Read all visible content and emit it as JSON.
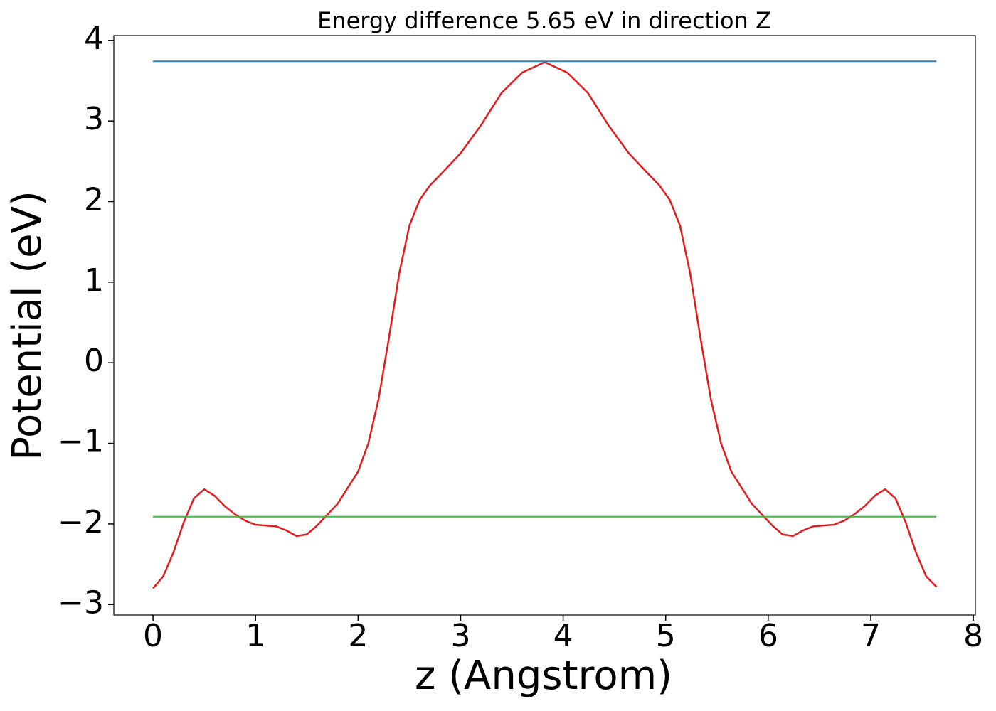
{
  "chart_data": {
    "type": "line",
    "title": "Energy difference 5.65 eV in direction Z",
    "x_label": "z (Angstrom)",
    "y_label": "Potential (eV)",
    "xlim": [
      -0.382,
      8.02
    ],
    "ylim": [
      -3.13,
      4.06
    ],
    "xticks": [
      0,
      1,
      2,
      3,
      4,
      5,
      6,
      7,
      8
    ],
    "yticks": [
      {
        "value": -3,
        "label": "−3"
      },
      {
        "value": -2,
        "label": "−2"
      },
      {
        "value": -1,
        "label": "−1"
      },
      0,
      1,
      2,
      3,
      4
    ],
    "grid": false,
    "series": [
      {
        "color": "#e41a1c",
        "x": [
          0,
          0.1,
          0.2,
          0.3,
          0.4,
          0.5,
          0.6,
          0.7,
          0.8,
          0.9,
          1.0,
          1.2,
          1.3,
          1.4,
          1.5,
          1.6,
          1.8,
          2.0,
          2.1,
          2.2,
          2.3,
          2.4,
          2.5,
          2.6,
          2.7,
          2.8,
          3.0,
          3.2,
          3.4,
          3.6,
          3.82,
          4.04,
          4.24,
          4.44,
          4.64,
          4.84,
          4.94,
          5.04,
          5.14,
          5.24,
          5.34,
          5.44,
          5.54,
          5.64,
          5.84,
          6.04,
          6.14,
          6.24,
          6.34,
          6.44,
          6.64,
          6.74,
          6.84,
          6.94,
          7.04,
          7.14,
          7.24,
          7.34,
          7.44,
          7.54,
          7.64
        ],
        "values": [
          -2.8,
          -2.65,
          -2.35,
          -1.98,
          -1.68,
          -1.57,
          -1.65,
          -1.78,
          -1.88,
          -1.96,
          -2.01,
          -2.03,
          -2.08,
          -2.15,
          -2.13,
          -2.02,
          -1.75,
          -1.35,
          -1.0,
          -0.45,
          0.3,
          1.1,
          1.7,
          2.02,
          2.2,
          2.33,
          2.6,
          2.95,
          3.35,
          3.6,
          3.73,
          3.6,
          3.35,
          2.95,
          2.6,
          2.33,
          2.2,
          2.02,
          1.7,
          1.1,
          0.3,
          -0.45,
          -1.0,
          -1.35,
          -1.75,
          -2.02,
          -2.13,
          -2.15,
          -2.08,
          -2.03,
          -2.01,
          -1.96,
          -1.88,
          -1.78,
          -1.65,
          -1.57,
          -1.68,
          -1.98,
          -2.35,
          -2.65,
          -2.78
        ]
      },
      {
        "color": "#377eb8",
        "x": [
          0,
          7.64
        ],
        "values": [
          3.74,
          3.74
        ]
      },
      {
        "color": "#4daf4a",
        "x": [
          0,
          7.64
        ],
        "values": [
          -1.91,
          -1.91
        ]
      }
    ]
  }
}
